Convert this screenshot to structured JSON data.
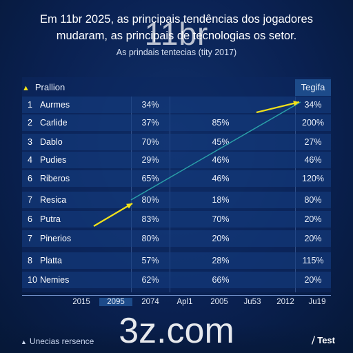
{
  "title_line1": "Em 11br 2025, as principais tendências dos jogadores",
  "title_line2": "mudaram, as principais de tecnologias os setor.",
  "watermark_top": "11br",
  "subtitle": "As prindais tentecias (tity 2017)",
  "header_left": "Prallion",
  "header_right": "Tegifa",
  "header_marker": "▲",
  "footer_marker": "▲",
  "footer": "Unecias rersence",
  "badge": "⧸ Test",
  "watermark_bottom": "3z.com",
  "colors": {
    "background": "#0a2152",
    "row": "#163e82",
    "arrow": "#f2e21a",
    "trend_line": "#2a9fa8",
    "header_highlight": "#1d4b8a"
  },
  "chart_data": {
    "type": "table",
    "title": "Em 11br 2025, as principais tendências dos jogadores mudaram, as principais de tecnologias os setor.",
    "subtitle": "As prindais tentecias (tity 2017)",
    "columns": [
      "Prallion",
      "",
      "",
      "Tegifa"
    ],
    "rows": [
      {
        "rank": "1",
        "name": "Aurmes",
        "v1": "34%",
        "v2": "",
        "v3": "34%"
      },
      {
        "rank": "2",
        "name": "Carlide",
        "v1": "37%",
        "v2": "85%",
        "v3": "200%"
      },
      {
        "rank": "3",
        "name": "Dablo",
        "v1": "70%",
        "v2": "45%",
        "v3": "27%"
      },
      {
        "rank": "4",
        "name": "Pudies",
        "v1": "29%",
        "v2": "46%",
        "v3": "46%"
      },
      {
        "rank": "6",
        "name": "Riberos",
        "v1": "65%",
        "v2": "46%",
        "v3": "120%"
      },
      {
        "rank": "7",
        "name": "Resica",
        "v1": "80%",
        "v2": "18%",
        "v3": "80%"
      },
      {
        "rank": "6",
        "name": "Putra",
        "v1": "83%",
        "v2": "70%",
        "v3": "20%"
      },
      {
        "rank": "7",
        "name": "Pinerios",
        "v1": "80%",
        "v2": "20%",
        "v3": "20%"
      },
      {
        "rank": "8",
        "name": "Platta",
        "v1": "57%",
        "v2": "28%",
        "v3": "115%"
      },
      {
        "rank": "10",
        "name": "Nemies",
        "v1": "62%",
        "v2": "66%",
        "v3": "20%"
      }
    ],
    "x_ticks": [
      "2015",
      "2095",
      "2074",
      "Apl1",
      "2005",
      "Ju53",
      "2012",
      "Ju19"
    ],
    "highlighted_tick": "2095",
    "trend_line": {
      "from_row": "Resica",
      "to_row": "Aurmes",
      "color": "#2a9fa8"
    },
    "grid": true
  }
}
